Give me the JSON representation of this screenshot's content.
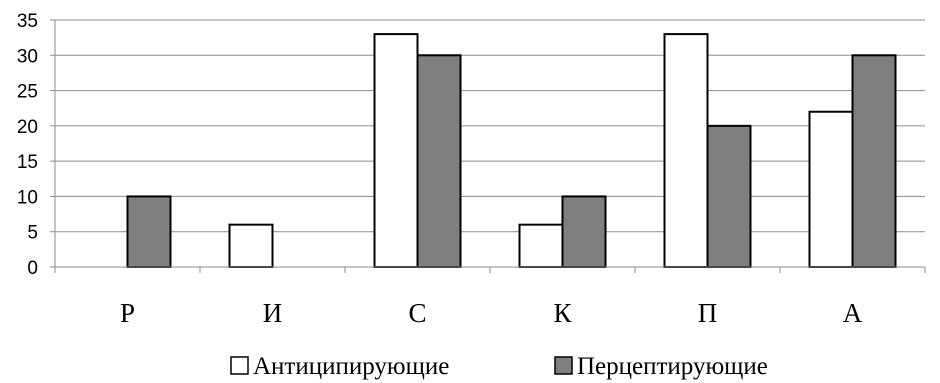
{
  "chart_data": {
    "type": "bar",
    "categories": [
      "Р",
      "И",
      "С",
      "К",
      "П",
      "А"
    ],
    "series": [
      {
        "name": "Антиципирующие",
        "values": [
          0,
          6,
          33,
          6,
          33,
          22
        ],
        "color": "#ffffff"
      },
      {
        "name": "Перцептирующие",
        "values": [
          10,
          0,
          30,
          10,
          20,
          30
        ],
        "color": "#7f7f7f"
      }
    ],
    "ylim": [
      0,
      35
    ],
    "yticks": [
      "0",
      "5",
      "10",
      "15",
      "20",
      "25",
      "30",
      "35"
    ],
    "grid": true,
    "legend": "bottom"
  }
}
